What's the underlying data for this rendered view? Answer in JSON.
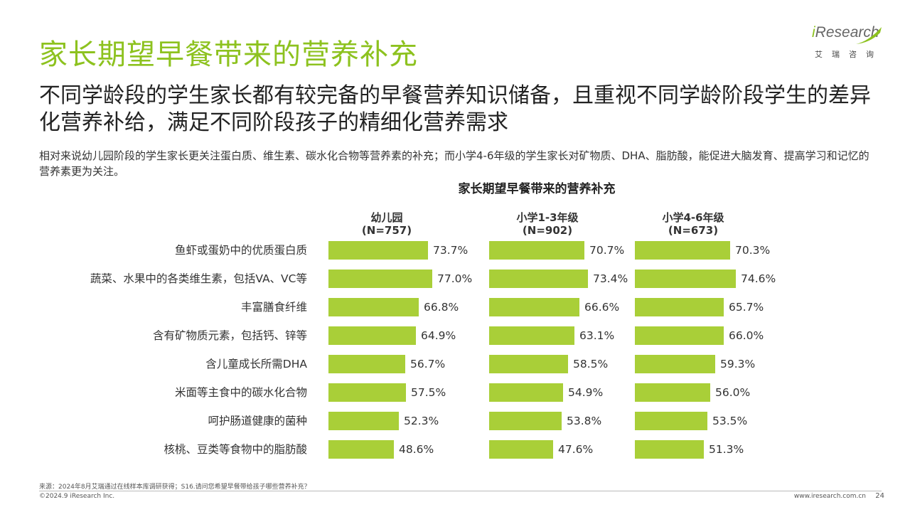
{
  "header": {
    "title": "家长期望早餐带来的营养补充",
    "logo_text_i": "i",
    "logo_text_rest": "Research",
    "logo_cn": "艾瑞咨询"
  },
  "headline": "不同学龄段的学生家长都有较完备的早餐营养知识储备，且重视不同学龄阶段学生的差异化营养补给，满足不同阶段孩子的精细化营养需求",
  "description": "相对来说幼儿园阶段的学生家长更关注蛋白质、维生素、碳水化合物等营养素的补充；而小学4-6年级的学生家长对矿物质、DHA、脂肪酸，能促进大脑发育、提高学习和记忆的营养素更为关注。",
  "colors": {
    "bar": "#a9cf38",
    "title": "#8dc21f"
  },
  "chart_data": {
    "type": "bar",
    "title": "家长期望早餐带来的营养补充",
    "categories": [
      "鱼虾或蛋奶中的优质蛋白质",
      "蔬菜、水果中的各类维生素，包括VA、VC等",
      "丰富膳食纤维",
      "含有矿物质元素，包括钙、锌等",
      "含儿童成长所需DHA",
      "米面等主食中的碳水化合物",
      "呵护肠道健康的菌种",
      "核桃、豆类等食物中的脂肪酸"
    ],
    "series": [
      {
        "name": "幼儿园",
        "n": "(N=757)",
        "values": [
          73.7,
          77.0,
          66.8,
          64.9,
          56.7,
          57.5,
          52.3,
          48.6
        ],
        "labels": [
          "73.7%",
          "77.0%",
          "66.8%",
          "64.9%",
          "56.7%",
          "57.5%",
          "52.3%",
          "48.6%"
        ]
      },
      {
        "name": "小学1-3年级",
        "n": "(N=902)",
        "values": [
          70.7,
          73.4,
          66.6,
          63.1,
          58.5,
          54.9,
          53.8,
          47.6
        ],
        "labels": [
          "70.7%",
          "73.4%",
          "66.6%",
          "63.1%",
          "58.5%",
          "54.9%",
          "53.8%",
          "47.6%"
        ]
      },
      {
        "name": "小学4-6年级",
        "n": "(N=673)",
        "values": [
          70.3,
          74.6,
          65.7,
          66.0,
          59.3,
          56.0,
          53.5,
          51.3
        ],
        "labels": [
          "70.3%",
          "74.6%",
          "65.7%",
          "66.0%",
          "59.3%",
          "56.0%",
          "53.5%",
          "51.3%"
        ]
      }
    ]
  },
  "footer": {
    "source": "来源：2024年8月艾瑞通过在线样本库调研获得；S16.请问您希望早餐带给孩子哪些营养补充？",
    "copyright": "©2024.9 iResearch Inc.",
    "site": "www.iresearch.com.cn",
    "page": "24"
  }
}
